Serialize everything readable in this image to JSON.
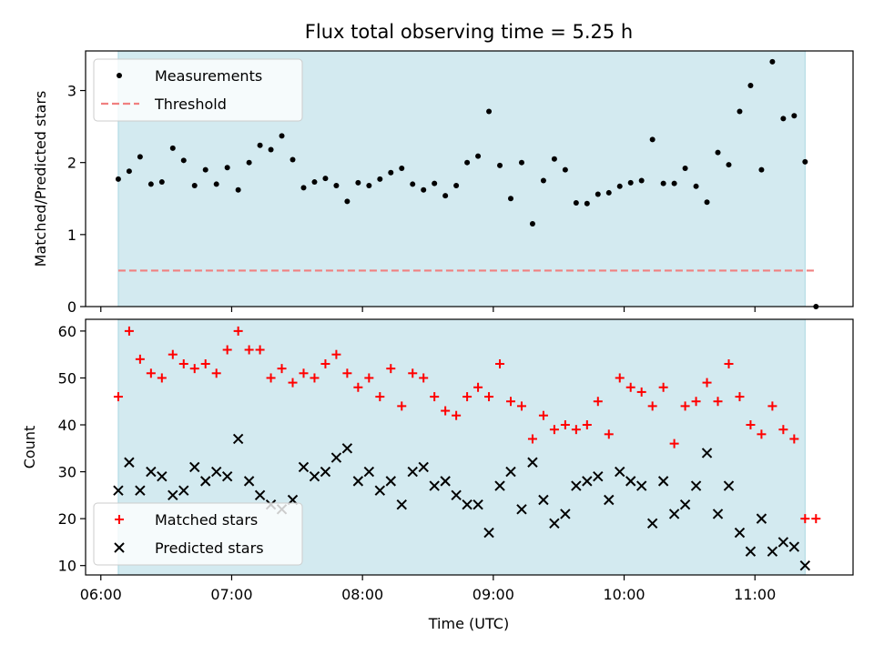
{
  "title": "Flux total observing time = 5.25 h",
  "xlabel": "Time (UTC)",
  "chart_data": [
    {
      "type": "scatter",
      "panel": "top",
      "ylabel": "Matched/Predicted stars",
      "xlim": [
        "05:53",
        "11:45"
      ],
      "ylim": [
        0,
        3.55
      ],
      "yticks": [
        0,
        1,
        2,
        3
      ],
      "shaded_span": [
        "06:08",
        "11:23"
      ],
      "legend_position": "upper left",
      "series": [
        {
          "name": "Measurements",
          "color": "#000000",
          "marker": "dot",
          "x": [
            "06:08",
            "06:13",
            "06:18",
            "06:23",
            "06:28",
            "06:33",
            "06:38",
            "06:43",
            "06:48",
            "06:53",
            "06:58",
            "07:03",
            "07:08",
            "07:13",
            "07:18",
            "07:23",
            "07:28",
            "07:33",
            "07:38",
            "07:43",
            "07:48",
            "07:53",
            "07:58",
            "08:03",
            "08:08",
            "08:13",
            "08:18",
            "08:23",
            "08:28",
            "08:33",
            "08:38",
            "08:43",
            "08:48",
            "08:53",
            "08:58",
            "09:03",
            "09:08",
            "09:13",
            "09:18",
            "09:23",
            "09:28",
            "09:33",
            "09:38",
            "09:43",
            "09:48",
            "09:53",
            "09:58",
            "10:03",
            "10:08",
            "10:13",
            "10:18",
            "10:23",
            "10:28",
            "10:33",
            "10:38",
            "10:43",
            "10:48",
            "10:53",
            "10:58",
            "11:03",
            "11:08",
            "11:13",
            "11:18",
            "11:23",
            "11:28"
          ],
          "y": [
            1.77,
            1.88,
            2.08,
            1.7,
            1.73,
            2.2,
            2.03,
            1.68,
            1.9,
            1.7,
            1.93,
            1.62,
            2.0,
            2.24,
            2.18,
            2.37,
            2.04,
            1.65,
            1.73,
            1.78,
            1.68,
            1.46,
            1.72,
            1.68,
            1.77,
            1.86,
            1.92,
            1.7,
            1.62,
            1.71,
            1.54,
            1.68,
            2.0,
            2.09,
            2.71,
            1.96,
            1.5,
            2.0,
            1.15,
            1.75,
            2.05,
            1.9,
            1.44,
            1.43,
            1.56,
            1.58,
            1.67,
            1.72,
            1.75,
            2.32,
            1.71,
            1.71,
            1.92,
            1.67,
            1.45,
            2.14,
            1.97,
            2.71,
            3.07,
            1.9,
            3.4,
            2.61,
            2.65,
            2.01,
            0.0
          ]
        },
        {
          "name": "Threshold",
          "color": "#f08080",
          "style": "dashed",
          "x": [
            "06:08",
            "11:28"
          ],
          "y": [
            0.5,
            0.5
          ]
        }
      ]
    },
    {
      "type": "scatter",
      "panel": "bottom",
      "ylabel": "Count",
      "xlim": [
        "05:53",
        "11:45"
      ],
      "ylim": [
        8,
        62.5
      ],
      "yticks": [
        10,
        20,
        30,
        40,
        50,
        60
      ],
      "xticks": [
        "06:00",
        "07:00",
        "08:00",
        "09:00",
        "10:00",
        "11:00"
      ],
      "shaded_span": [
        "06:08",
        "11:23"
      ],
      "legend_position": "lower left",
      "series": [
        {
          "name": "Matched stars",
          "color": "#ff0000",
          "marker": "plus",
          "x": [
            "06:08",
            "06:13",
            "06:18",
            "06:23",
            "06:28",
            "06:33",
            "06:38",
            "06:43",
            "06:48",
            "06:53",
            "06:58",
            "07:03",
            "07:08",
            "07:13",
            "07:18",
            "07:23",
            "07:28",
            "07:33",
            "07:38",
            "07:43",
            "07:48",
            "07:53",
            "07:58",
            "08:03",
            "08:08",
            "08:13",
            "08:18",
            "08:23",
            "08:28",
            "08:33",
            "08:38",
            "08:43",
            "08:48",
            "08:53",
            "08:58",
            "09:03",
            "09:08",
            "09:13",
            "09:18",
            "09:23",
            "09:28",
            "09:33",
            "09:38",
            "09:43",
            "09:48",
            "09:53",
            "09:58",
            "10:03",
            "10:08",
            "10:13",
            "10:18",
            "10:23",
            "10:28",
            "10:33",
            "10:38",
            "10:43",
            "10:48",
            "10:53",
            "10:58",
            "11:03",
            "11:08",
            "11:13",
            "11:18",
            "11:23",
            "11:28"
          ],
          "y": [
            46,
            60,
            54,
            51,
            50,
            55,
            53,
            52,
            53,
            51,
            56,
            60,
            56,
            56,
            50,
            52,
            49,
            51,
            50,
            53,
            55,
            51,
            48,
            50,
            46,
            52,
            44,
            51,
            50,
            46,
            43,
            42,
            46,
            48,
            46,
            53,
            45,
            44,
            37,
            42,
            39,
            40,
            39,
            40,
            45,
            38,
            50,
            48,
            47,
            44,
            48,
            36,
            44,
            45,
            49,
            45,
            53,
            46,
            40,
            38,
            44,
            39,
            37,
            20,
            20
          ]
        },
        {
          "name": "Predicted stars",
          "color": "#000000",
          "marker": "x",
          "x": [
            "06:08",
            "06:13",
            "06:18",
            "06:23",
            "06:28",
            "06:33",
            "06:38",
            "06:43",
            "06:48",
            "06:53",
            "06:58",
            "07:03",
            "07:08",
            "07:13",
            "07:18",
            "07:23",
            "07:28",
            "07:33",
            "07:38",
            "07:43",
            "07:48",
            "07:53",
            "07:58",
            "08:03",
            "08:08",
            "08:13",
            "08:18",
            "08:23",
            "08:28",
            "08:33",
            "08:38",
            "08:43",
            "08:48",
            "08:53",
            "08:58",
            "09:03",
            "09:08",
            "09:13",
            "09:18",
            "09:23",
            "09:28",
            "09:33",
            "09:38",
            "09:43",
            "09:48",
            "09:53",
            "09:58",
            "10:03",
            "10:08",
            "10:13",
            "10:18",
            "10:23",
            "10:28",
            "10:33",
            "10:38",
            "10:43",
            "10:48",
            "10:53",
            "10:58",
            "11:03",
            "11:08",
            "11:13",
            "11:18",
            "11:23"
          ],
          "y": [
            26,
            32,
            26,
            30,
            29,
            25,
            26,
            31,
            28,
            30,
            29,
            37,
            28,
            25,
            23,
            22,
            24,
            31,
            29,
            30,
            33,
            35,
            28,
            30,
            26,
            28,
            23,
            30,
            31,
            27,
            28,
            25,
            23,
            23,
            17,
            27,
            30,
            22,
            32,
            24,
            19,
            21,
            27,
            28,
            29,
            24,
            30,
            28,
            27,
            19,
            28,
            21,
            23,
            27,
            34,
            21,
            27,
            17,
            13,
            20,
            13,
            15,
            14,
            10
          ]
        }
      ]
    }
  ],
  "colors": {
    "shade": "#d3eaf0",
    "shade_edge": "#a9d6e1",
    "threshold": "#f08080",
    "matched": "#ff0000",
    "predicted": "#000000"
  }
}
